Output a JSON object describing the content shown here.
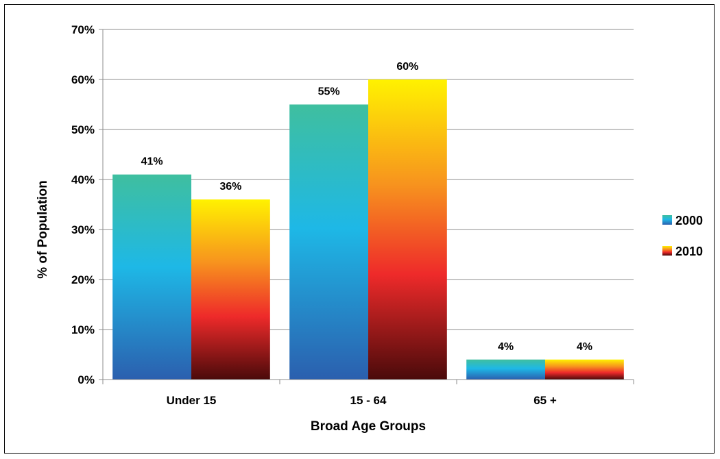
{
  "chart_data": {
    "type": "bar",
    "categories": [
      "Under 15",
      "15 - 64",
      "65 +"
    ],
    "series": [
      {
        "name": "2000",
        "values": [
          41,
          55,
          4
        ],
        "labels": [
          "41%",
          "55%",
          "4%"
        ]
      },
      {
        "name": "2010",
        "values": [
          36,
          60,
          4
        ],
        "labels": [
          "36%",
          "60%",
          "4%"
        ]
      }
    ],
    "xlabel": "Broad Age Groups",
    "ylabel": "% of Population",
    "ylim": [
      0,
      70
    ],
    "yticks": [
      "0%",
      "10%",
      "20%",
      "30%",
      "40%",
      "50%",
      "60%",
      "70%"
    ],
    "grid": true,
    "legend": "right",
    "colors": {
      "2000": {
        "top": "#3fbf9f",
        "mid": "#1eb8e6",
        "bottom": "#2b5fae"
      },
      "2010": {
        "top": "#fff200",
        "mid": "#ee2a2a",
        "bottom": "#4a0a0a"
      }
    }
  }
}
